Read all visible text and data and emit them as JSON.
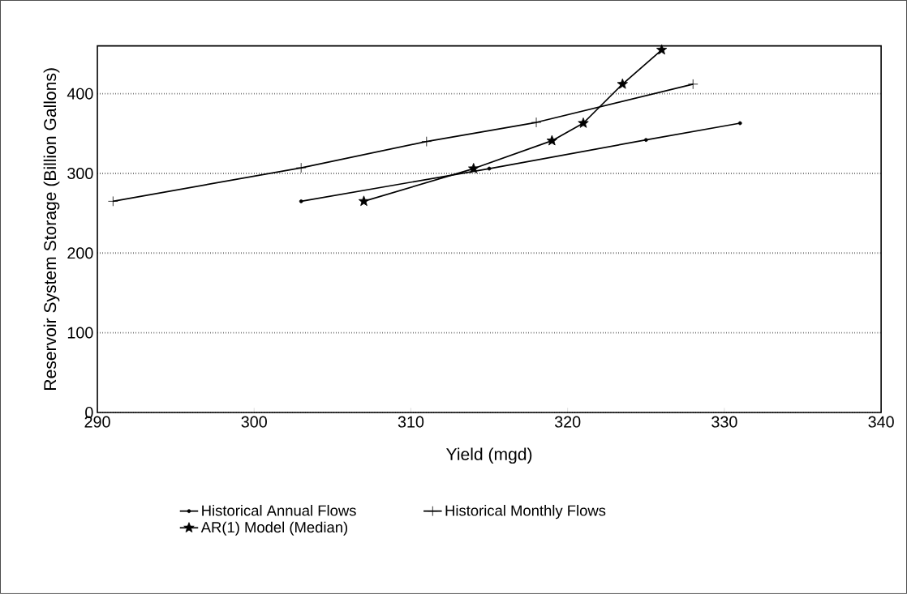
{
  "chart_data": {
    "type": "line",
    "xlabel": "Yield (mgd)",
    "ylabel": "Reservoir System Storage (Billion Gallons)",
    "xlim": [
      290,
      340
    ],
    "xticks": [
      290,
      300,
      310,
      320,
      330,
      340
    ],
    "ylim": [
      0,
      460
    ],
    "yticks": [
      0,
      100,
      200,
      300,
      400
    ],
    "grid": "y",
    "legend": "bottom",
    "series": [
      {
        "name": "Historical Annual Flows",
        "color": "#000000",
        "marker": "circle",
        "x": [
          303,
          315,
          325,
          331
        ],
        "values": [
          265,
          306,
          342,
          363
        ]
      },
      {
        "name": "Historical Monthly Flows",
        "color": "#000000",
        "marker": "cross",
        "x": [
          291,
          303,
          311,
          318,
          328
        ],
        "values": [
          265,
          307,
          340,
          364,
          412
        ]
      },
      {
        "name": "AR(1) Model (Median)",
        "color": "#000000",
        "marker": "star",
        "x": [
          307,
          314,
          319,
          321,
          323.5,
          326
        ],
        "values": [
          265,
          306,
          341,
          363,
          412,
          455
        ]
      }
    ]
  }
}
